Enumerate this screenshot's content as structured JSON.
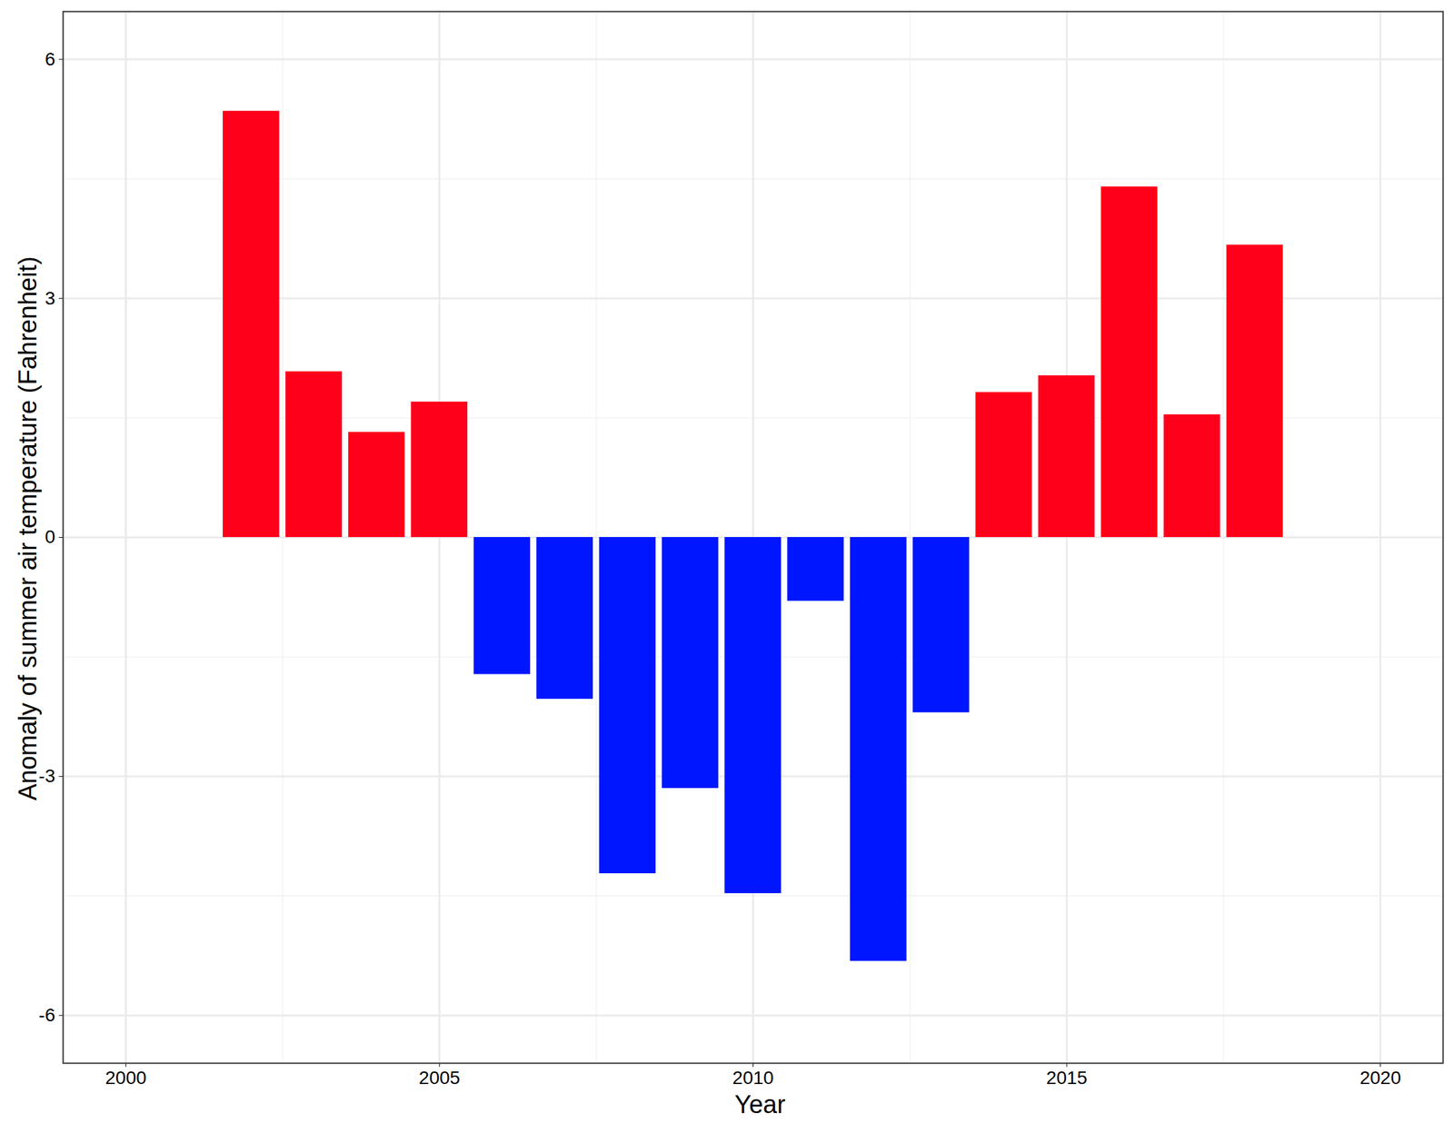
{
  "chart_data": {
    "type": "bar",
    "x_label": "Year",
    "y_label": "Anomaly of summer air temperature (Fahrenheit)",
    "x": [
      2002,
      2003,
      2004,
      2005,
      2006,
      2007,
      2008,
      2009,
      2010,
      2011,
      2012,
      2013,
      2014,
      2015,
      2016,
      2017,
      2018
    ],
    "values": [
      5.35,
      2.08,
      1.32,
      1.7,
      -1.72,
      -2.03,
      -4.22,
      -3.15,
      -4.47,
      -0.8,
      -5.32,
      -2.2,
      1.82,
      2.03,
      4.4,
      1.54,
      3.67
    ],
    "colors": [
      "#ff001a",
      "#ff001a",
      "#ff001a",
      "#ff001a",
      "#0016ff",
      "#0016ff",
      "#0016ff",
      "#0016ff",
      "#0016ff",
      "#0016ff",
      "#0016ff",
      "#0016ff",
      "#ff001a",
      "#ff001a",
      "#ff001a",
      "#ff001a",
      "#ff001a"
    ],
    "xlim": [
      1999,
      2021
    ],
    "ylim": [
      -6.6,
      6.6
    ],
    "xticks": [
      2000,
      2005,
      2010,
      2015,
      2020
    ],
    "yticks": [
      -6,
      -3,
      0,
      3,
      6
    ],
    "grid": true
  }
}
